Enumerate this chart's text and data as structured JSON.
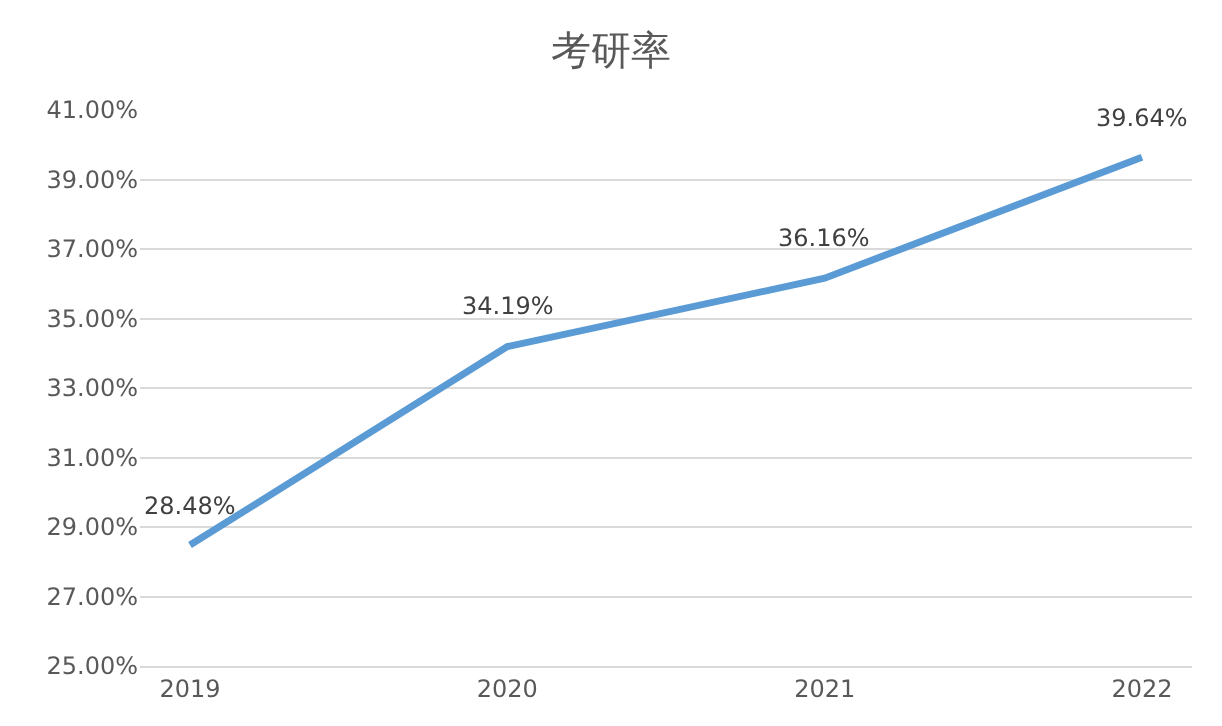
{
  "chart_data": {
    "type": "line",
    "title": "考研率",
    "categories": [
      "2019",
      "2020",
      "2021",
      "2022"
    ],
    "series": [
      {
        "color": "#5b9bd5",
        "values": [
          28.48,
          34.19,
          36.16,
          39.64
        ],
        "value_labels": [
          "28.48%",
          "34.19%",
          "36.16%",
          "39.64%"
        ]
      }
    ],
    "ylim": [
      25,
      41
    ],
    "yticks": [
      {
        "value": 25,
        "label": "25.00%"
      },
      {
        "value": 27,
        "label": "27.00%"
      },
      {
        "value": 29,
        "label": "29.00%"
      },
      {
        "value": 31,
        "label": "31.00%"
      },
      {
        "value": 33,
        "label": "33.00%"
      },
      {
        "value": 35,
        "label": "35.00%"
      },
      {
        "value": 37,
        "label": "37.00%"
      },
      {
        "value": 39,
        "label": "39.00%"
      },
      {
        "value": 41,
        "label": "41.00%"
      }
    ],
    "grid": "y",
    "marker": "none",
    "line_style": "solid"
  }
}
